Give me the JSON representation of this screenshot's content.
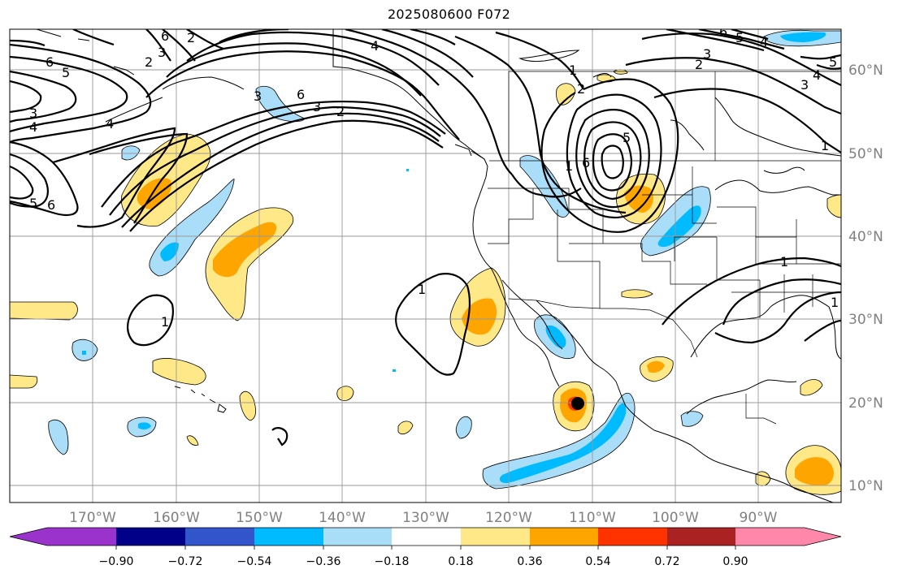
{
  "title": "2025080600 F072",
  "latitude_labels": [
    "60°N",
    "50°N",
    "40°N",
    "30°N",
    "20°N",
    "10°N"
  ],
  "longitude_labels": [
    "170°W",
    "160°W",
    "150°W",
    "140°W",
    "130°W",
    "120°W",
    "110°W",
    "100°W",
    "90°W"
  ],
  "colorbar": {
    "ticks": [
      "−0.90",
      "−0.72",
      "−0.54",
      "−0.36",
      "−0.18",
      "0.18",
      "0.36",
      "0.54",
      "0.72",
      "0.90"
    ],
    "colors": [
      "#9933cc",
      "#000088",
      "#3355cc",
      "#00bbff",
      "#aaddf8",
      "#ffffff",
      "#ffe888",
      "#ffa500",
      "#ff3300",
      "#aa2222",
      "#ff88aa"
    ]
  },
  "contour_labels": [
    "6",
    "5",
    "4",
    "3",
    "2",
    "2",
    "3",
    "6",
    "4",
    "5",
    "6",
    "3",
    "6",
    "3",
    "2",
    "1",
    "2",
    "4",
    "1",
    "5",
    "6",
    "1",
    "2",
    "3",
    "4",
    "5",
    "6",
    "5",
    "4",
    "3",
    "1",
    "1",
    "1",
    "1"
  ],
  "storm_marker": "storm-center"
}
